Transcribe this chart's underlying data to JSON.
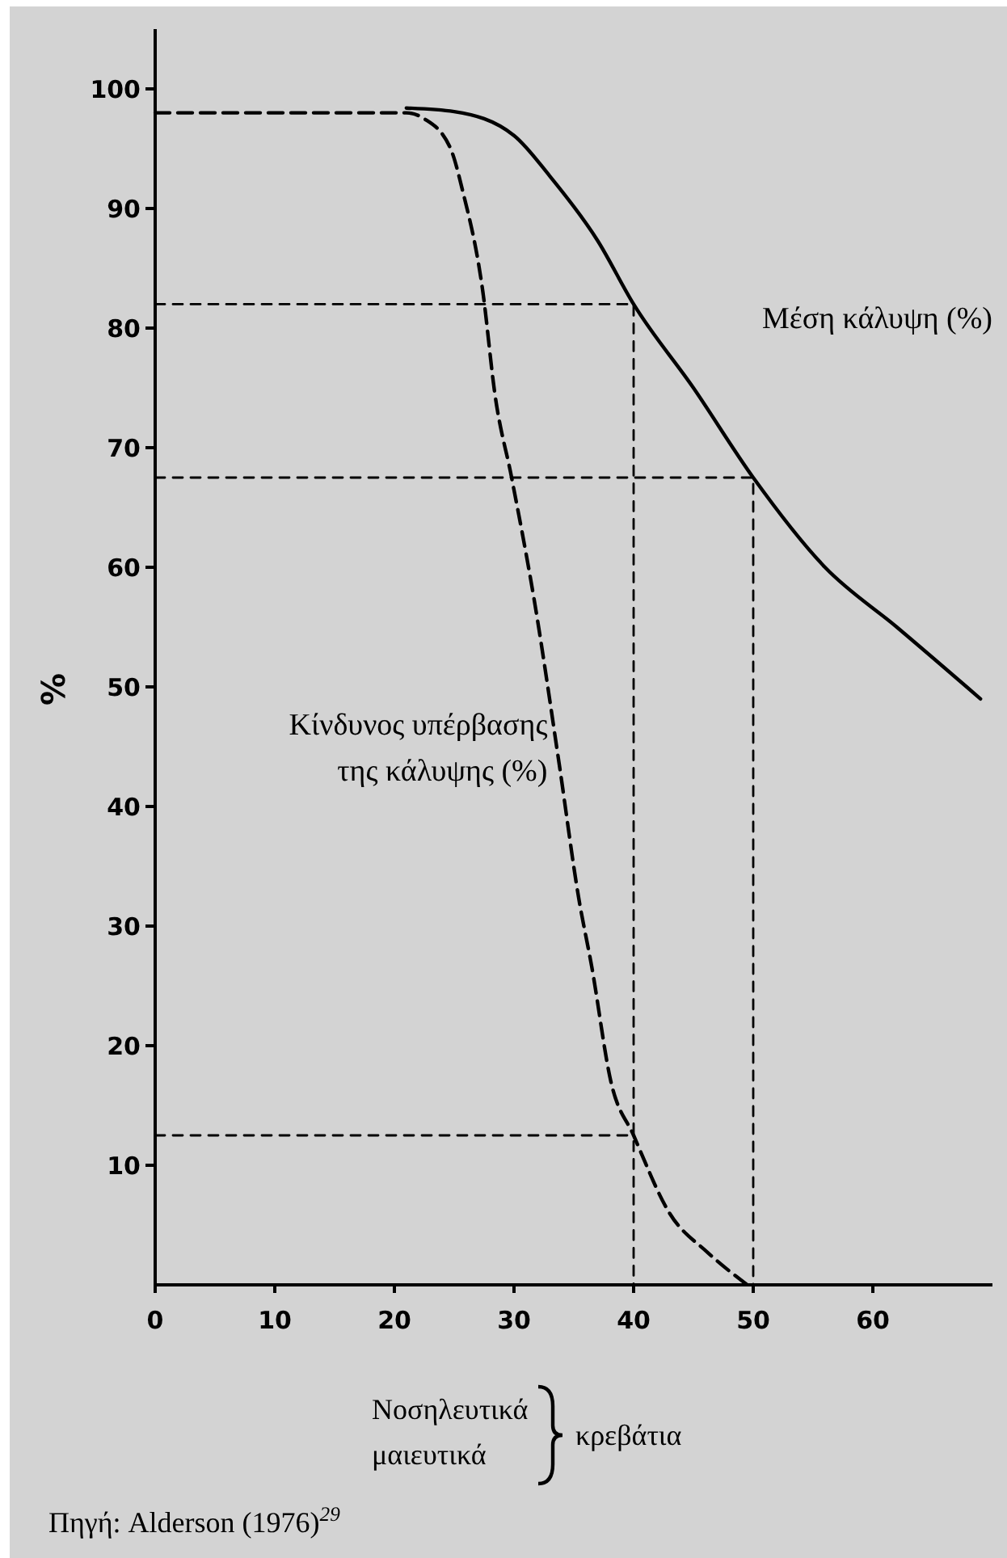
{
  "chart_data": {
    "type": "line",
    "xlabel": "Νοσηλευτικά μαιευτικά κρεβάτια",
    "ylabel": "%",
    "xlim": [
      0,
      70
    ],
    "xticks": [
      0,
      10,
      20,
      30,
      40,
      50,
      60
    ],
    "ylim": [
      0,
      105
    ],
    "yticks": [
      10,
      20,
      30,
      40,
      50,
      60,
      70,
      80,
      90,
      100
    ],
    "grid": false,
    "marker": "none",
    "annotations": [
      "Πηγή: Alderson (1976)$^{29}$"
    ],
    "series": [
      {
        "name": "Μέση κάλυψη (%)",
        "color": "#000000",
        "line_style": "solid",
        "x": [
          21,
          25,
          30,
          33,
          37,
          40,
          45,
          50,
          56,
          62,
          69
        ],
        "values": [
          98.4,
          98.1,
          96.1,
          92.7,
          87.3,
          82,
          75,
          67.5,
          60,
          55,
          49
        ]
      },
      {
        "name": "Κίνδυνος υπέρβασης της κάλυψης (%)",
        "color": "#000000",
        "line_style": "dashed",
        "x": [
          0,
          21,
          22.5,
          24.7,
          25.7,
          27.4,
          28.4,
          29.8,
          31.7,
          33.8,
          35.4,
          36.5,
          38.1,
          40,
          43,
          46.2,
          49.5
        ],
        "values": [
          98,
          98,
          97.5,
          95,
          91.5,
          83,
          74.5,
          67.5,
          57.2,
          43.4,
          32.4,
          26.6,
          17,
          12.5,
          6,
          2.7,
          0
        ]
      },
      {
        "color": "#000000",
        "line_style": "dashed",
        "x": [
          0,
          40,
          40
        ],
        "values": [
          82,
          82,
          0
        ]
      },
      {
        "color": "#000000",
        "line_style": "dashed",
        "x": [
          0,
          50,
          50
        ],
        "values": [
          67.5,
          67.5,
          0
        ]
      },
      {
        "color": "#000000",
        "line_style": "dashed",
        "x": [
          0,
          40
        ],
        "values": [
          12.5,
          12.5
        ]
      }
    ]
  }
}
